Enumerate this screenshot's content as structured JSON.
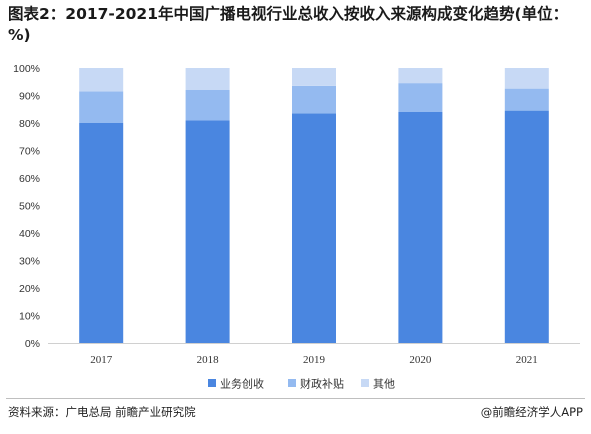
{
  "title": "图表2：2017-2021年中国广播电视行业总收入按收入来源构成变化趋势(单位：%)",
  "source": "资料来源：广电总局 前瞻产业研究院",
  "credit": "@前瞻经济学人APP",
  "chart_data": {
    "type": "bar",
    "stacked": true,
    "categories": [
      "2017",
      "2018",
      "2019",
      "2020",
      "2021"
    ],
    "series": [
      {
        "name": "业务创收",
        "values": [
          80,
          81,
          83.5,
          84,
          84.5
        ],
        "color": "#4a86e0"
      },
      {
        "name": "财政补贴",
        "values": [
          11.5,
          11,
          10,
          10.5,
          8
        ],
        "color": "#94baf0"
      },
      {
        "name": "其他",
        "values": [
          8.5,
          8,
          6.5,
          5.5,
          7.5
        ],
        "color": "#c7d9f5"
      }
    ],
    "ylim": [
      0,
      100
    ],
    "yticks": [
      "0%",
      "10%",
      "20%",
      "30%",
      "40%",
      "50%",
      "60%",
      "70%",
      "80%",
      "90%",
      "100%"
    ],
    "legend": "bottom"
  }
}
